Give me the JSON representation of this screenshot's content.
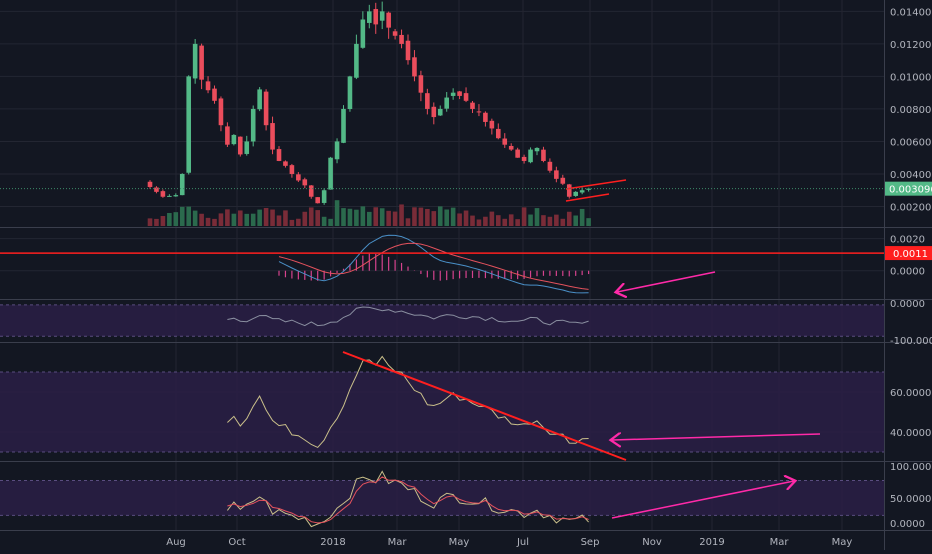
{
  "colors": {
    "background": "#131722",
    "grid": "#232632",
    "separator": "#3a3e4c",
    "axis_text": "#b2b5be",
    "up": "#53b987",
    "down": "#eb4d5c",
    "volume_up": "#2b6a4d",
    "volume_down": "#7a2c38",
    "macd_line": "#4a90c8",
    "signal_line": "#e4525d",
    "histogram": "#d6438e",
    "band_fill": "#2a1f45",
    "band_line": "#5a4d80",
    "oscillator_line": "#c9bf8a",
    "trendline": "#ff1f1f",
    "annotation_arrow": "#ff2aa8",
    "price_tag": "#53b987",
    "level_tag": "#ff1f1f"
  },
  "chart_data": [
    {
      "type": "candlestick",
      "pane": "price",
      "x_axis_labels": [
        "Aug",
        "Oct",
        "2018",
        "Mar",
        "May",
        "Jul",
        "Sep",
        "Nov",
        "2019",
        "Mar",
        "May"
      ],
      "y_ticks": [
        "0.014000",
        "0.012000",
        "0.010000",
        "0.008000",
        "0.006000",
        "0.004000",
        "0.002000"
      ],
      "ylim": [
        0.0008,
        0.0147
      ],
      "last_price": "0.003096",
      "weeks": 59,
      "close_path": [
        [
          0,
          0.0032
        ],
        [
          2,
          0.0026
        ],
        [
          4,
          0.0027
        ],
        [
          5,
          0.004
        ],
        [
          6,
          0.01
        ],
        [
          7,
          0.012
        ],
        [
          8,
          0.0098
        ],
        [
          10,
          0.0085
        ],
        [
          11,
          0.007
        ],
        [
          12,
          0.0058
        ],
        [
          13,
          0.0064
        ],
        [
          14,
          0.0052
        ],
        [
          15,
          0.006
        ],
        [
          16,
          0.008
        ],
        [
          17,
          0.0092
        ],
        [
          18,
          0.007
        ],
        [
          19,
          0.0055
        ],
        [
          20,
          0.0048
        ],
        [
          21,
          0.0045
        ],
        [
          22,
          0.004
        ],
        [
          23,
          0.0036
        ],
        [
          24,
          0.0033
        ],
        [
          25,
          0.0026
        ],
        [
          26,
          0.0022
        ],
        [
          27,
          0.003
        ],
        [
          28,
          0.005
        ],
        [
          29,
          0.006
        ],
        [
          30,
          0.008
        ],
        [
          31,
          0.01
        ],
        [
          32,
          0.012
        ],
        [
          33,
          0.0135
        ],
        [
          34,
          0.014
        ],
        [
          35,
          0.0132
        ],
        [
          36,
          0.014
        ],
        [
          37,
          0.013
        ],
        [
          38,
          0.0125
        ],
        [
          39,
          0.012
        ],
        [
          40,
          0.011
        ],
        [
          41,
          0.01
        ],
        [
          42,
          0.009
        ],
        [
          43,
          0.008
        ],
        [
          44,
          0.0075
        ],
        [
          45,
          0.008
        ],
        [
          46,
          0.0087
        ],
        [
          47,
          0.009
        ],
        [
          48,
          0.0088
        ],
        [
          49,
          0.0085
        ],
        [
          50,
          0.008
        ],
        [
          51,
          0.0078
        ],
        [
          52,
          0.0072
        ],
        [
          53,
          0.0068
        ],
        [
          54,
          0.0062
        ],
        [
          55,
          0.0058
        ],
        [
          56,
          0.0055
        ],
        [
          57,
          0.005
        ],
        [
          58,
          0.0048
        ],
        [
          59,
          0.0055
        ],
        [
          60,
          0.0056
        ],
        [
          61,
          0.0048
        ],
        [
          62,
          0.0042
        ],
        [
          63,
          0.0037
        ],
        [
          64,
          0.0034
        ],
        [
          65,
          0.0026
        ],
        [
          66,
          0.0029
        ],
        [
          67,
          0.003
        ],
        [
          68,
          0.0031
        ]
      ]
    },
    {
      "type": "macd",
      "pane": "macd",
      "y_ticks": [
        "0.0020",
        "0.0000"
      ],
      "ylim": [
        -0.0017,
        0.0026
      ],
      "level_line": 0.0011,
      "level_label": "0.0011"
    },
    {
      "type": "line",
      "pane": "oscillator-1",
      "y_ticks": [
        "0.0000",
        "-100.0000"
      ],
      "ylim": [
        -115,
        10
      ],
      "band": [
        -2,
        -100
      ]
    },
    {
      "type": "line",
      "pane": "oscillator-2",
      "y_ticks": [
        "60.0000",
        "40.0000"
      ],
      "ylim": [
        26,
        84
      ],
      "band": [
        30,
        70
      ]
    },
    {
      "type": "line",
      "pane": "stochastic",
      "y_ticks": [
        "100.0000",
        "50.0000",
        "0.0000"
      ],
      "ylim": [
        -5,
        110
      ],
      "band": [
        20,
        80
      ]
    }
  ]
}
